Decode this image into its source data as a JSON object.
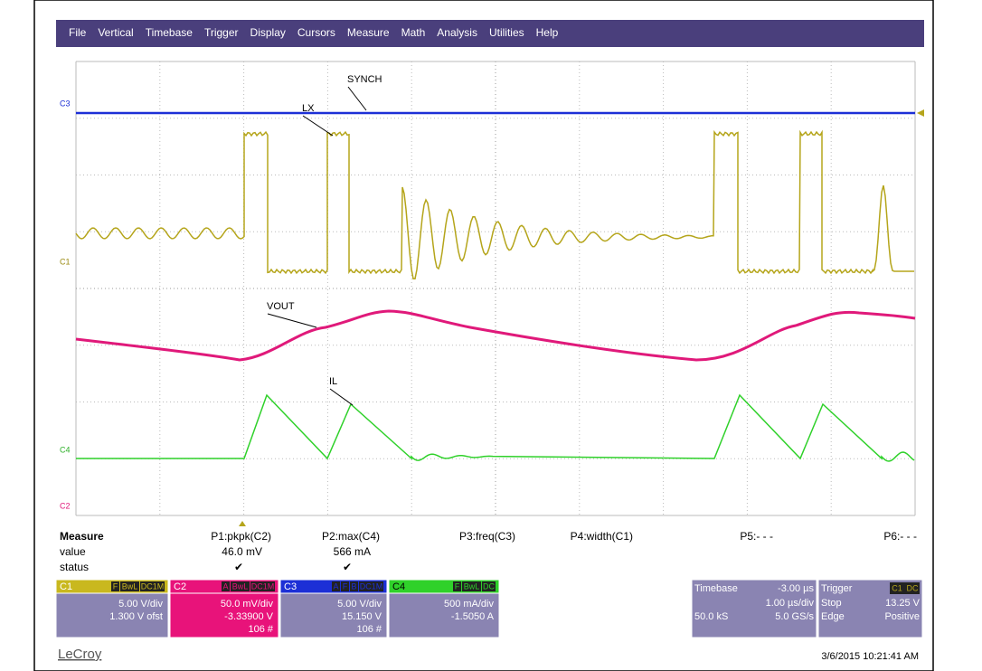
{
  "menu": [
    "File",
    "Vertical",
    "Timebase",
    "Trigger",
    "Display",
    "Cursors",
    "Measure",
    "Math",
    "Analysis",
    "Utilities",
    "Help"
  ],
  "markers": [
    "C3",
    "C1",
    "C4",
    "C2"
  ],
  "trace_labels": [
    "SYNCH",
    "LX",
    "VOUT",
    "IL"
  ],
  "measure": {
    "title": "Measure",
    "row_labels": [
      "value",
      "status"
    ],
    "params": [
      "P1:pkpk(C2)",
      "P2:max(C4)",
      "P3:freq(C3)",
      "P4:width(C1)",
      "P5:- - -",
      "P6:- - -"
    ],
    "values": [
      "46.0 mV",
      "566 mA"
    ],
    "status": [
      "✔",
      "✔"
    ]
  },
  "channels": [
    {
      "name": "C1",
      "tags": [
        "F",
        "BwL",
        "DC1M"
      ],
      "lines": [
        "5.00 V/div",
        "1.300 V ofst"
      ]
    },
    {
      "name": "C2",
      "tags": [
        "A",
        "BwL",
        "DC1M"
      ],
      "lines": [
        "50.0 mV/div",
        "-3.33900 V",
        "106 #"
      ]
    },
    {
      "name": "C3",
      "tags": [
        "A",
        "F",
        "B",
        "DC1M"
      ],
      "lines": [
        "5.00 V/div",
        "15.150 V",
        "106 #"
      ]
    },
    {
      "name": "C4",
      "tags": [
        "F",
        "BwL",
        "DC"
      ],
      "lines": [
        "500 mA/div",
        "-1.5050 A"
      ]
    }
  ],
  "timebase": {
    "title": "Timebase",
    "delay": "-3.00 µs",
    "scale": "1.00 µs/div",
    "samples": "50.0 kS",
    "rate": "5.0 GS/s"
  },
  "trigger": {
    "title": "Trigger",
    "source": "C1",
    "coupling": "DC",
    "mode": "Stop",
    "level": "13.25 V",
    "type": "Edge",
    "slope": "Positive"
  },
  "brand": "LeCroy",
  "timestamp": "3/6/2015 10:21:41 AM"
}
